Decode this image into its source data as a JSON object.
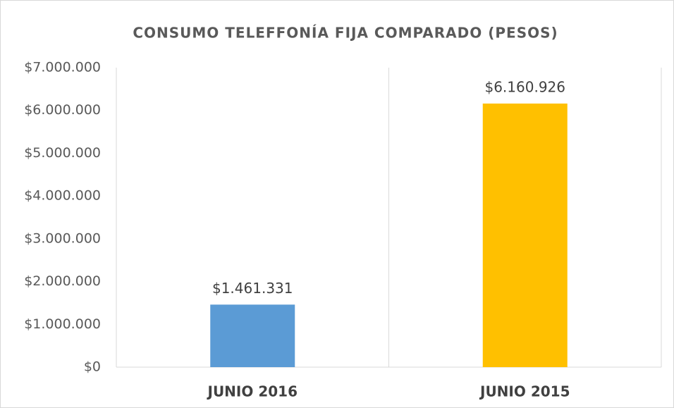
{
  "chart_data": {
    "type": "bar",
    "title": "CONSUMO TELEFFONÍA FIJA COMPARADO (PESOS)",
    "categories": [
      "JUNIO 2016",
      "JUNIO 2015"
    ],
    "values": [
      1461331,
      6160926
    ],
    "value_labels": [
      "$1.461.331",
      "$6.160.926"
    ],
    "colors": [
      "#5b9bd5",
      "#ffc000"
    ],
    "ylim": [
      0,
      7000000
    ],
    "yticks": [
      {
        "value": 0,
        "label": "$0"
      },
      {
        "value": 1000000,
        "label": "$1.000.000"
      },
      {
        "value": 2000000,
        "label": "$2.000.000"
      },
      {
        "value": 3000000,
        "label": "$3.000.000"
      },
      {
        "value": 4000000,
        "label": "$4.000.000"
      },
      {
        "value": 5000000,
        "label": "$5.000.000"
      },
      {
        "value": 6000000,
        "label": "$6.000.000"
      },
      {
        "value": 7000000,
        "label": "$7.000.000"
      }
    ]
  }
}
